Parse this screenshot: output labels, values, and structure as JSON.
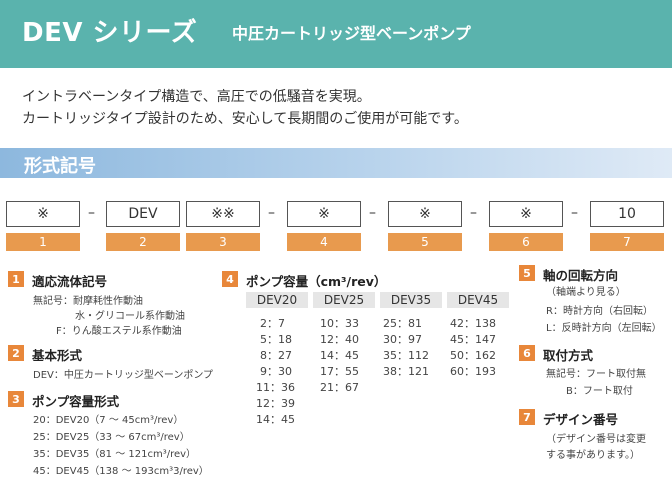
{
  "header": {
    "title": "DEV シリーズ",
    "subtitle": "中圧カートリッジ型ベーンポンプ"
  },
  "intro": {
    "line1": "イントラベーンタイプ構造で、高圧での低騒音を実現。",
    "line2": "カートリッジタイプ設計のため、安心して長期間のご使用が可能です。"
  },
  "section_title": "形式記号",
  "code": {
    "boxes": [
      "※",
      "DEV",
      "※※",
      "※",
      "※",
      "※",
      "10"
    ],
    "numbers": [
      "1",
      "2",
      "3",
      "4",
      "5",
      "6",
      "7"
    ],
    "dash": "–"
  },
  "s1": {
    "num": "1",
    "title": "適応流体記号",
    "lines": [
      "無記号：耐摩耗性作動油",
      "水・グリコール系作動油",
      "F：りん酸エステル系作動油"
    ]
  },
  "s2": {
    "num": "2",
    "title": "基本形式",
    "lines": [
      "DEV：中圧カートリッジ型ベーンポンプ"
    ]
  },
  "s3": {
    "num": "3",
    "title": "ポンプ容量形式",
    "lines": [
      "20：DEV20（7 ～ 45cm³/rev）",
      "25：DEV25（33 ～ 67cm³/rev）",
      "35：DEV35（81 ～ 121cm³/rev）",
      "45：DEV45（138 ～ 193cm³3/rev）"
    ]
  },
  "s4": {
    "num": "4",
    "title": "ポンプ容量（cm³/rev）",
    "columns": [
      {
        "name": "DEV20",
        "values": [
          "2：7",
          "5：18",
          "8：27",
          "9：30",
          "11：36",
          "12：39",
          "14：45"
        ]
      },
      {
        "name": "DEV25",
        "values": [
          "10：33",
          "12：40",
          "14：45",
          "17：55",
          "21：67"
        ]
      },
      {
        "name": "DEV35",
        "values": [
          "25：81",
          "30：97",
          "35：112",
          "38：121"
        ]
      },
      {
        "name": "DEV45",
        "values": [
          "42：138",
          "45：147",
          "50：162",
          "60：193"
        ]
      }
    ]
  },
  "s5": {
    "num": "5",
    "title": "軸の回転方向",
    "note": "（軸端より見る）",
    "lines": [
      "R：時計方向（右回転）",
      "L：反時計方向（左回転）"
    ]
  },
  "s6": {
    "num": "6",
    "title": "取付方式",
    "lines": [
      "無記号：フート取付無",
      "B：フート取付"
    ]
  },
  "s7": {
    "num": "7",
    "title": "デザイン番号",
    "lines": [
      "（デザイン番号は変更",
      "する事があります。）"
    ]
  },
  "colors": {
    "header": "#5ab3ad",
    "badge": "#e8873a",
    "number_box": "#e89a4e",
    "section_bar": "#8db8de"
  }
}
